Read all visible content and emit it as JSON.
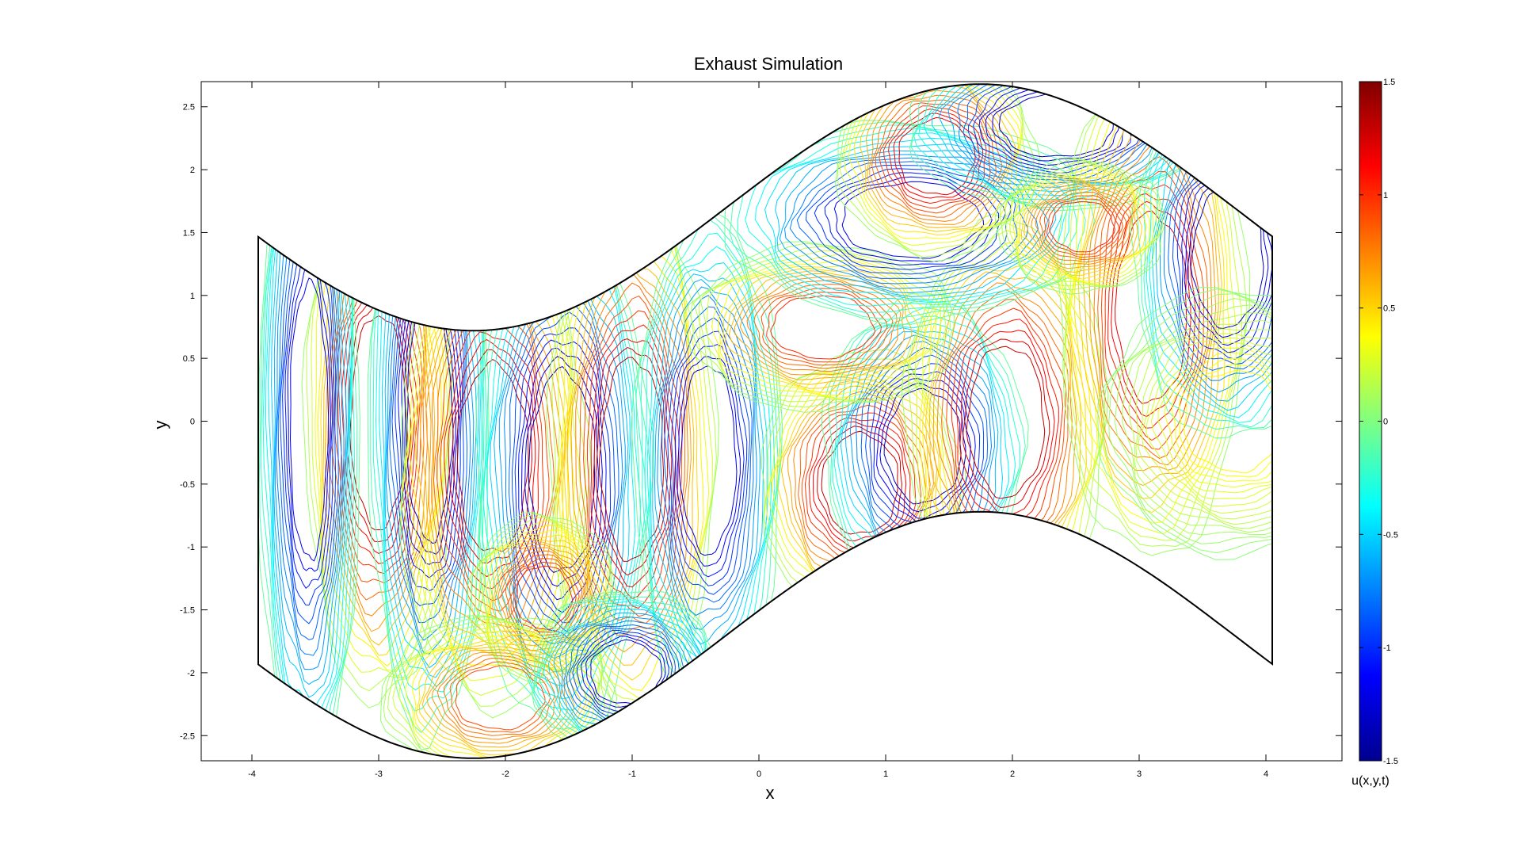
{
  "chart_data": {
    "type": "contour",
    "title": "Exhaust Simulation",
    "xlabel": "x",
    "ylabel": "y",
    "xlim": [
      -4.4,
      4.6
    ],
    "ylim": [
      -2.7,
      2.7
    ],
    "xticks": [
      -4,
      -3,
      -2,
      -1,
      0,
      1,
      2,
      3,
      4
    ],
    "yticks": [
      2.5,
      2,
      1.5,
      1,
      0.5,
      0,
      -0.5,
      -1,
      -1.5,
      -2,
      -2.5
    ],
    "colorbar": {
      "label": "u(x,y,t)",
      "range": [
        -1.5,
        1.5
      ],
      "ticks": [
        1.5,
        1,
        0.5,
        0,
        -0.5,
        -1,
        -1.5
      ],
      "colormap": [
        "#00008f",
        "#0000ff",
        "#0080ff",
        "#00ffff",
        "#80ff80",
        "#ffff00",
        "#ff8000",
        "#ff0000",
        "#800000"
      ]
    },
    "domain": {
      "x_range": [
        -3.95,
        4.05
      ],
      "upper_boundary": "y = 0.98*sin(0.785*x + 0.2) + 1.7",
      "lower_boundary": "y = 0.98*sin(0.785*x + 0.2) - 1.7"
    },
    "features": [
      {
        "x": -3.0,
        "y": 0.0,
        "a": 0.22,
        "b": 0.85,
        "value": 1.3
      },
      {
        "x": -2.6,
        "y": 0.0,
        "a": 0.18,
        "b": 0.95,
        "value": -1.3
      },
      {
        "x": -3.55,
        "y": 0.0,
        "a": 0.15,
        "b": 1.1,
        "value": -1.2
      },
      {
        "x": -2.1,
        "y": -0.3,
        "a": 0.28,
        "b": 0.75,
        "value": 1.3
      },
      {
        "x": -1.55,
        "y": -0.4,
        "a": 0.26,
        "b": 0.8,
        "value": -1.3
      },
      {
        "x": -1.0,
        "y": -0.3,
        "a": 0.25,
        "b": 0.8,
        "value": 1.3
      },
      {
        "x": -0.4,
        "y": -0.3,
        "a": 0.22,
        "b": 0.75,
        "value": -1.2
      },
      {
        "x": -1.7,
        "y": -1.4,
        "a": 0.22,
        "b": 0.25,
        "value": 1.0
      },
      {
        "x": -2.05,
        "y": -2.2,
        "a": 0.35,
        "b": 0.25,
        "value": 0.9
      },
      {
        "x": -1.05,
        "y": -2.0,
        "a": 0.28,
        "b": 0.25,
        "value": -1.2
      },
      {
        "x": 0.8,
        "y": -0.5,
        "a": 0.3,
        "b": 0.4,
        "value": 1.3
      },
      {
        "x": 1.3,
        "y": -0.2,
        "a": 0.3,
        "b": 0.45,
        "value": -1.3
      },
      {
        "x": 1.95,
        "y": 0.0,
        "a": 0.3,
        "b": 0.6,
        "value": 1.3
      },
      {
        "x": 0.5,
        "y": 0.75,
        "a": 0.4,
        "b": 0.25,
        "value": 1.0
      },
      {
        "x": 1.2,
        "y": 1.6,
        "a": 0.55,
        "b": 0.3,
        "value": -1.2
      },
      {
        "x": 1.4,
        "y": 2.1,
        "a": 0.3,
        "b": 0.3,
        "value": 1.2
      },
      {
        "x": 2.35,
        "y": 2.35,
        "a": 0.45,
        "b": 0.25,
        "value": -1.3
      },
      {
        "x": 3.1,
        "y": 0.9,
        "a": 0.28,
        "b": 0.75,
        "value": 1.2
      },
      {
        "x": 3.7,
        "y": 1.3,
        "a": 0.28,
        "b": 0.55,
        "value": -1.3
      },
      {
        "x": 2.55,
        "y": 1.55,
        "a": 0.25,
        "b": 0.2,
        "value": 1.0
      },
      {
        "x": 3.75,
        "y": 0.0,
        "a": 0.4,
        "b": 0.4,
        "value": 0.4
      }
    ]
  }
}
